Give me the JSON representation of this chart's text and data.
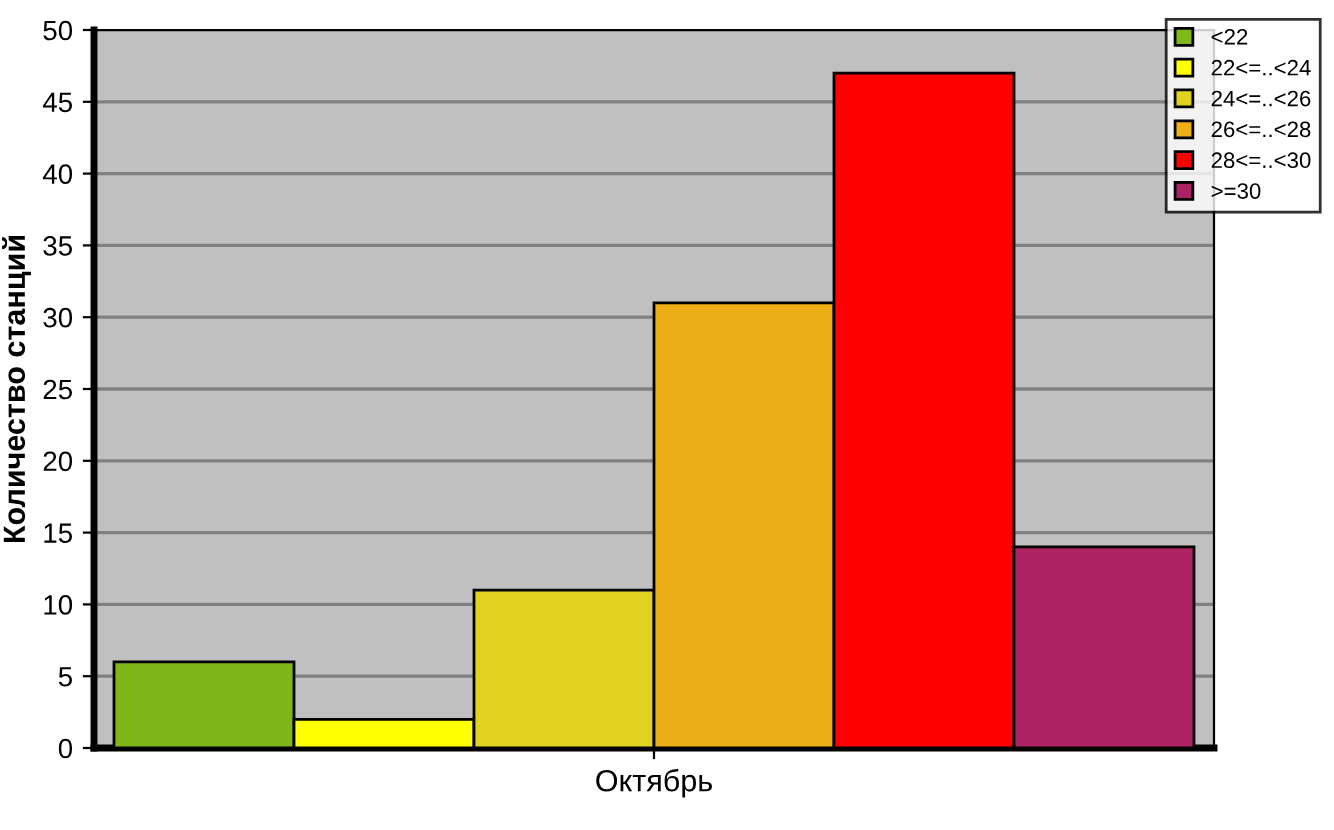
{
  "chart_data": {
    "type": "bar",
    "categories": [
      "Октябрь"
    ],
    "ylabel": "Количество станций",
    "ylim": [
      0,
      50
    ],
    "yticks": [
      0,
      5,
      10,
      15,
      20,
      25,
      30,
      35,
      40,
      45,
      50
    ],
    "grid": "y",
    "legend": "top right",
    "series": [
      {
        "name": "<22",
        "color": "#7fb719",
        "values": [
          6
        ]
      },
      {
        "name": "22<=..<24",
        "color": "#ffff00",
        "values": [
          2
        ]
      },
      {
        "name": "24<=..<26",
        "color": "#e0d21e",
        "values": [
          11
        ]
      },
      {
        "name": "26<=..<28",
        "color": "#eeae16",
        "values": [
          31
        ]
      },
      {
        "name": "28<=..<30",
        "color": "#ff0000",
        "values": [
          47
        ]
      },
      {
        "name": ">=30",
        "color": "#ac2262",
        "values": [
          14
        ]
      }
    ]
  }
}
